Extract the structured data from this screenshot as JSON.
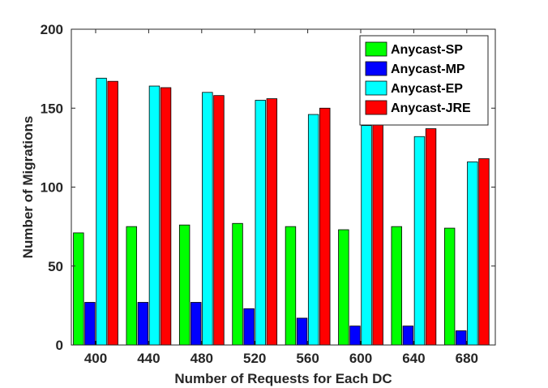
{
  "chart_data": {
    "type": "bar",
    "title": "",
    "xlabel": "Number of Requests for Each DC",
    "ylabel": "Number of Migrations",
    "categories": [
      "400",
      "440",
      "480",
      "520",
      "560",
      "600",
      "640",
      "680"
    ],
    "ylim": [
      0,
      200
    ],
    "yticks": [
      "0",
      "50",
      "100",
      "150",
      "200"
    ],
    "grid": false,
    "legend_position": "top-right",
    "series": [
      {
        "name": "Anycast-SP",
        "color": "#00ff00",
        "values": [
          71,
          75,
          76,
          77,
          75,
          73,
          75,
          74
        ]
      },
      {
        "name": "Anycast-MP",
        "color": "#0000ff",
        "values": [
          27,
          27,
          27,
          23,
          17,
          12,
          12,
          9
        ]
      },
      {
        "name": "Anycast-EP",
        "color": "#00ffff",
        "values": [
          169,
          164,
          160,
          155,
          146,
          139,
          132,
          116
        ]
      },
      {
        "name": "Anycast-JRE",
        "color": "#ff0000",
        "values": [
          167,
          163,
          158,
          156,
          150,
          144,
          137,
          118
        ]
      }
    ]
  }
}
